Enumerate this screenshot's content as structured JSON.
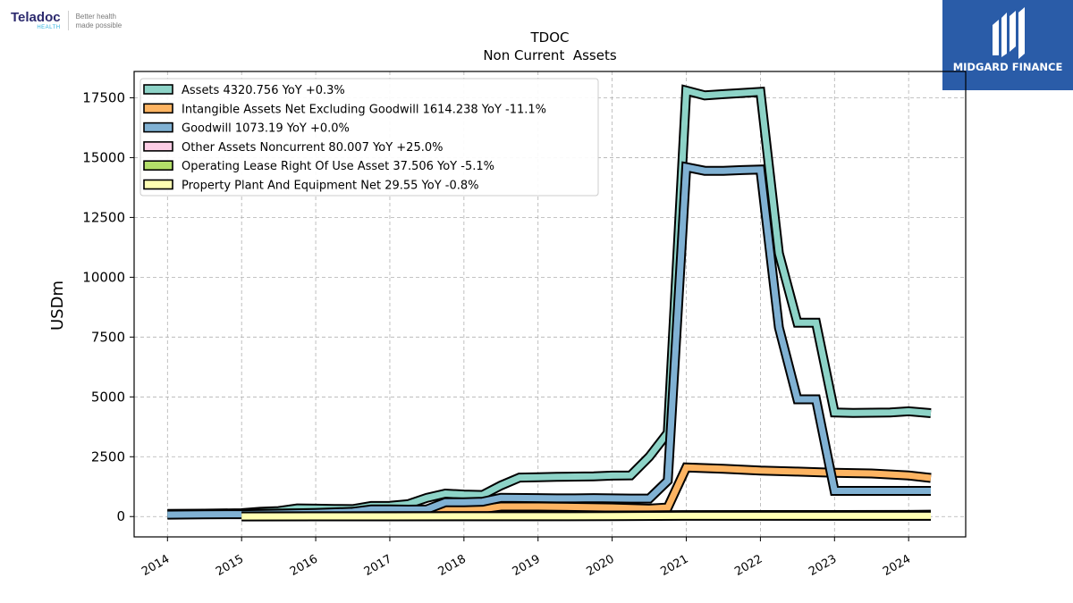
{
  "brand": {
    "name": "Teladoc",
    "sub": "HEALTH",
    "tagline_line1": "Better health",
    "tagline_line2": "made possible"
  },
  "badge": {
    "label": "MIDGARD FINANCE"
  },
  "chart_data": {
    "type": "line",
    "title": "TDOC",
    "subtitle": "Non Current  Assets",
    "ylabel": "USDm",
    "xlabel": "",
    "xlim": [
      2013.55,
      2024.77
    ],
    "ylim": [
      -850,
      18600
    ],
    "yticks": [
      0,
      2500,
      5000,
      7500,
      10000,
      12500,
      15000,
      17500
    ],
    "xticks": [
      2014,
      2015,
      2016,
      2017,
      2018,
      2019,
      2020,
      2021,
      2022,
      2023,
      2024
    ],
    "grid": true,
    "legend_position": "top-left",
    "series": [
      {
        "name": "Assets",
        "legend": "Assets  4320.756 YoY +0.3%",
        "color": "#8dd3c7",
        "points": [
          [
            2014.0,
            110
          ],
          [
            2014.5,
            120
          ],
          [
            2015.0,
            140
          ],
          [
            2015.25,
            200
          ],
          [
            2015.5,
            230
          ],
          [
            2015.75,
            340
          ],
          [
            2016.0,
            330
          ],
          [
            2016.25,
            320
          ],
          [
            2016.5,
            310
          ],
          [
            2016.75,
            440
          ],
          [
            2017.0,
            450
          ],
          [
            2017.25,
            520
          ],
          [
            2017.5,
            780
          ],
          [
            2017.75,
            960
          ],
          [
            2018.0,
            920
          ],
          [
            2018.25,
            900
          ],
          [
            2018.5,
            1300
          ],
          [
            2018.75,
            1630
          ],
          [
            2019.0,
            1640
          ],
          [
            2019.25,
            1660
          ],
          [
            2019.5,
            1670
          ],
          [
            2019.75,
            1680
          ],
          [
            2020.0,
            1710
          ],
          [
            2020.25,
            1720
          ],
          [
            2020.5,
            2500
          ],
          [
            2020.75,
            3500
          ],
          [
            2021.0,
            17800
          ],
          [
            2021.25,
            17600
          ],
          [
            2021.5,
            17650
          ],
          [
            2021.75,
            17700
          ],
          [
            2022.0,
            17750
          ],
          [
            2022.25,
            11000
          ],
          [
            2022.5,
            8100
          ],
          [
            2022.75,
            8100
          ],
          [
            2023.0,
            4350
          ],
          [
            2023.25,
            4330
          ],
          [
            2023.5,
            4340
          ],
          [
            2023.75,
            4350
          ],
          [
            2024.0,
            4400
          ],
          [
            2024.3,
            4320
          ]
        ]
      },
      {
        "name": "Intangible Assets Net Excluding Goodwill",
        "legend": "Intangible Assets Net Excluding Goodwill  1614.238 YoY -11.1%",
        "color": "#fdb462",
        "points": [
          [
            2015.0,
            120
          ],
          [
            2015.5,
            125
          ],
          [
            2016.0,
            130
          ],
          [
            2016.5,
            140
          ],
          [
            2017.0,
            180
          ],
          [
            2017.5,
            200
          ],
          [
            2017.75,
            300
          ],
          [
            2018.0,
            310
          ],
          [
            2018.25,
            320
          ],
          [
            2018.5,
            420
          ],
          [
            2019.0,
            420
          ],
          [
            2019.5,
            400
          ],
          [
            2020.0,
            380
          ],
          [
            2020.5,
            330
          ],
          [
            2020.75,
            380
          ],
          [
            2021.0,
            2050
          ],
          [
            2021.5,
            2000
          ],
          [
            2022.0,
            1920
          ],
          [
            2022.5,
            1880
          ],
          [
            2023.0,
            1830
          ],
          [
            2023.5,
            1800
          ],
          [
            2024.0,
            1720
          ],
          [
            2024.3,
            1614
          ]
        ]
      },
      {
        "name": "Goodwill",
        "legend": "Goodwill  1073.19 YoY +0.0%",
        "color": "#80b1d3",
        "points": [
          [
            2014.0,
            80
          ],
          [
            2014.5,
            90
          ],
          [
            2015.0,
            100
          ],
          [
            2015.5,
            120
          ],
          [
            2016.0,
            150
          ],
          [
            2016.5,
            200
          ],
          [
            2016.75,
            300
          ],
          [
            2017.0,
            300
          ],
          [
            2017.25,
            290
          ],
          [
            2017.5,
            300
          ],
          [
            2017.75,
            600
          ],
          [
            2018.0,
            600
          ],
          [
            2018.25,
            620
          ],
          [
            2018.5,
            780
          ],
          [
            2019.0,
            770
          ],
          [
            2019.25,
            760
          ],
          [
            2019.5,
            760
          ],
          [
            2019.75,
            770
          ],
          [
            2020.0,
            760
          ],
          [
            2020.25,
            750
          ],
          [
            2020.5,
            750
          ],
          [
            2020.75,
            1500
          ],
          [
            2021.0,
            14600
          ],
          [
            2021.25,
            14450
          ],
          [
            2021.5,
            14450
          ],
          [
            2021.75,
            14480
          ],
          [
            2022.0,
            14500
          ],
          [
            2022.25,
            7900
          ],
          [
            2022.5,
            4900
          ],
          [
            2022.75,
            4900
          ],
          [
            2023.0,
            1073
          ],
          [
            2023.5,
            1073
          ],
          [
            2024.0,
            1073
          ],
          [
            2024.3,
            1073
          ]
        ]
      },
      {
        "name": "Other Assets Noncurrent",
        "legend": "Other Assets Noncurrent  80.007 YoY +25.0%",
        "color": "#fccde5",
        "points": [
          [
            2015.0,
            10
          ],
          [
            2016.0,
            12
          ],
          [
            2017.0,
            15
          ],
          [
            2018.0,
            20
          ],
          [
            2019.0,
            22
          ],
          [
            2020.0,
            30
          ],
          [
            2021.0,
            60
          ],
          [
            2022.0,
            65
          ],
          [
            2023.0,
            64
          ],
          [
            2024.0,
            68
          ],
          [
            2024.3,
            80
          ]
        ]
      },
      {
        "name": "Operating Lease Right Of Use Asset",
        "legend": "Operating Lease Right Of Use Asset  37.506 YoY -5.1%",
        "color": "#b3de69",
        "points": [
          [
            2019.0,
            40
          ],
          [
            2020.0,
            45
          ],
          [
            2021.0,
            50
          ],
          [
            2022.0,
            45
          ],
          [
            2023.0,
            40
          ],
          [
            2024.0,
            39
          ],
          [
            2024.3,
            37.5
          ]
        ]
      },
      {
        "name": "Property Plant And Equipment Net",
        "legend": "Property Plant And Equipment Net  29.55 YoY -0.8%",
        "color": "#ffffb3",
        "points": [
          [
            2015.0,
            5
          ],
          [
            2016.0,
            8
          ],
          [
            2017.0,
            10
          ],
          [
            2018.0,
            12
          ],
          [
            2019.0,
            14
          ],
          [
            2020.0,
            16
          ],
          [
            2021.0,
            30
          ],
          [
            2022.0,
            32
          ],
          [
            2023.0,
            30
          ],
          [
            2024.0,
            29.8
          ],
          [
            2024.3,
            29.55
          ]
        ]
      }
    ]
  }
}
